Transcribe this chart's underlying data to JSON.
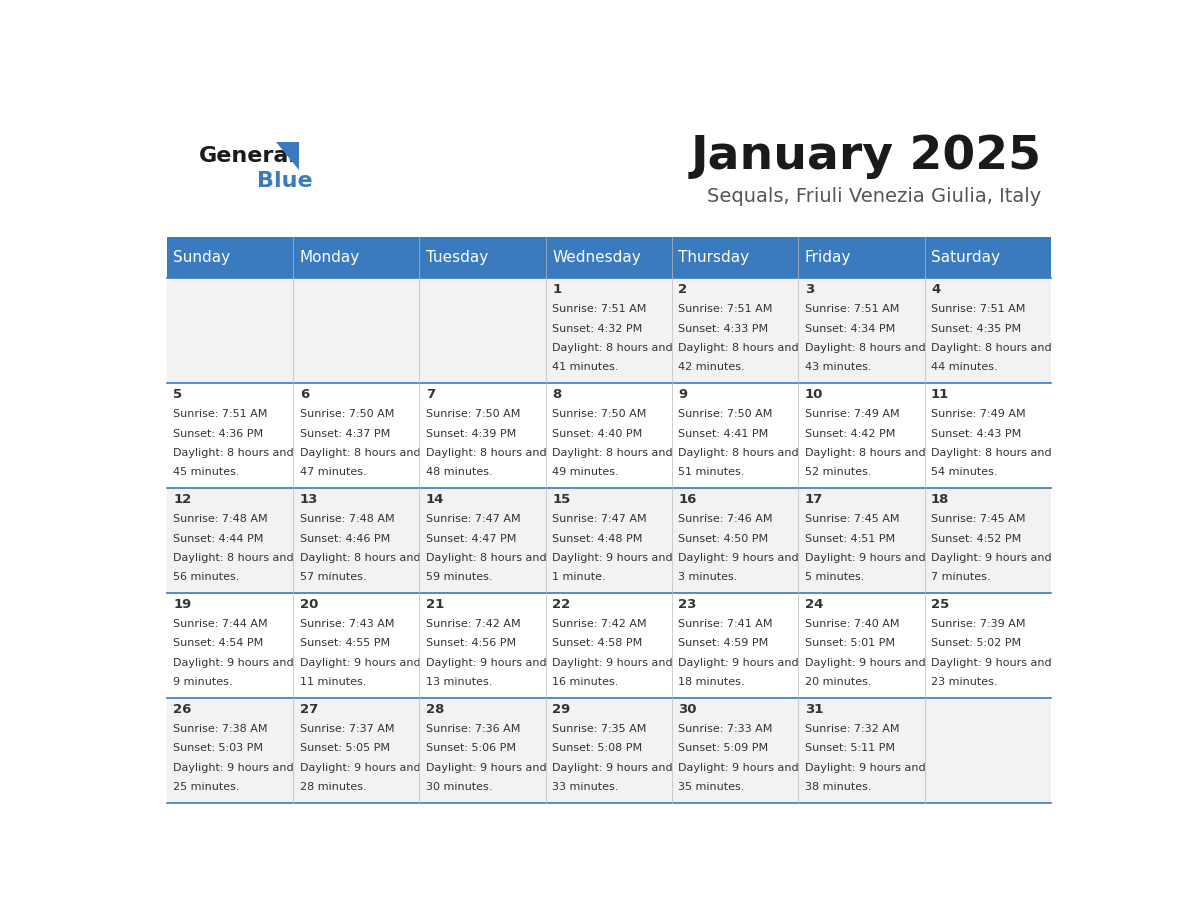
{
  "title": "January 2025",
  "subtitle": "Sequals, Friuli Venezia Giulia, Italy",
  "header_bg_color": "#3a7abf",
  "header_text_color": "#ffffff",
  "row_bg_colors": [
    "#f2f2f2",
    "#ffffff"
  ],
  "cell_text_color": "#333333",
  "day_num_color": "#333333",
  "border_color": "#3a7abf",
  "days_of_week": [
    "Sunday",
    "Monday",
    "Tuesday",
    "Wednesday",
    "Thursday",
    "Friday",
    "Saturday"
  ],
  "calendar": [
    [
      null,
      null,
      null,
      {
        "day": 1,
        "sunrise": "7:51 AM",
        "sunset": "4:32 PM",
        "daylight": "8 hours and 41 minutes."
      },
      {
        "day": 2,
        "sunrise": "7:51 AM",
        "sunset": "4:33 PM",
        "daylight": "8 hours and 42 minutes."
      },
      {
        "day": 3,
        "sunrise": "7:51 AM",
        "sunset": "4:34 PM",
        "daylight": "8 hours and 43 minutes."
      },
      {
        "day": 4,
        "sunrise": "7:51 AM",
        "sunset": "4:35 PM",
        "daylight": "8 hours and 44 minutes."
      }
    ],
    [
      {
        "day": 5,
        "sunrise": "7:51 AM",
        "sunset": "4:36 PM",
        "daylight": "8 hours and 45 minutes."
      },
      {
        "day": 6,
        "sunrise": "7:50 AM",
        "sunset": "4:37 PM",
        "daylight": "8 hours and 47 minutes."
      },
      {
        "day": 7,
        "sunrise": "7:50 AM",
        "sunset": "4:39 PM",
        "daylight": "8 hours and 48 minutes."
      },
      {
        "day": 8,
        "sunrise": "7:50 AM",
        "sunset": "4:40 PM",
        "daylight": "8 hours and 49 minutes."
      },
      {
        "day": 9,
        "sunrise": "7:50 AM",
        "sunset": "4:41 PM",
        "daylight": "8 hours and 51 minutes."
      },
      {
        "day": 10,
        "sunrise": "7:49 AM",
        "sunset": "4:42 PM",
        "daylight": "8 hours and 52 minutes."
      },
      {
        "day": 11,
        "sunrise": "7:49 AM",
        "sunset": "4:43 PM",
        "daylight": "8 hours and 54 minutes."
      }
    ],
    [
      {
        "day": 12,
        "sunrise": "7:48 AM",
        "sunset": "4:44 PM",
        "daylight": "8 hours and 56 minutes."
      },
      {
        "day": 13,
        "sunrise": "7:48 AM",
        "sunset": "4:46 PM",
        "daylight": "8 hours and 57 minutes."
      },
      {
        "day": 14,
        "sunrise": "7:47 AM",
        "sunset": "4:47 PM",
        "daylight": "8 hours and 59 minutes."
      },
      {
        "day": 15,
        "sunrise": "7:47 AM",
        "sunset": "4:48 PM",
        "daylight": "9 hours and 1 minute."
      },
      {
        "day": 16,
        "sunrise": "7:46 AM",
        "sunset": "4:50 PM",
        "daylight": "9 hours and 3 minutes."
      },
      {
        "day": 17,
        "sunrise": "7:45 AM",
        "sunset": "4:51 PM",
        "daylight": "9 hours and 5 minutes."
      },
      {
        "day": 18,
        "sunrise": "7:45 AM",
        "sunset": "4:52 PM",
        "daylight": "9 hours and 7 minutes."
      }
    ],
    [
      {
        "day": 19,
        "sunrise": "7:44 AM",
        "sunset": "4:54 PM",
        "daylight": "9 hours and 9 minutes."
      },
      {
        "day": 20,
        "sunrise": "7:43 AM",
        "sunset": "4:55 PM",
        "daylight": "9 hours and 11 minutes."
      },
      {
        "day": 21,
        "sunrise": "7:42 AM",
        "sunset": "4:56 PM",
        "daylight": "9 hours and 13 minutes."
      },
      {
        "day": 22,
        "sunrise": "7:42 AM",
        "sunset": "4:58 PM",
        "daylight": "9 hours and 16 minutes."
      },
      {
        "day": 23,
        "sunrise": "7:41 AM",
        "sunset": "4:59 PM",
        "daylight": "9 hours and 18 minutes."
      },
      {
        "day": 24,
        "sunrise": "7:40 AM",
        "sunset": "5:01 PM",
        "daylight": "9 hours and 20 minutes."
      },
      {
        "day": 25,
        "sunrise": "7:39 AM",
        "sunset": "5:02 PM",
        "daylight": "9 hours and 23 minutes."
      }
    ],
    [
      {
        "day": 26,
        "sunrise": "7:38 AM",
        "sunset": "5:03 PM",
        "daylight": "9 hours and 25 minutes."
      },
      {
        "day": 27,
        "sunrise": "7:37 AM",
        "sunset": "5:05 PM",
        "daylight": "9 hours and 28 minutes."
      },
      {
        "day": 28,
        "sunrise": "7:36 AM",
        "sunset": "5:06 PM",
        "daylight": "9 hours and 30 minutes."
      },
      {
        "day": 29,
        "sunrise": "7:35 AM",
        "sunset": "5:08 PM",
        "daylight": "9 hours and 33 minutes."
      },
      {
        "day": 30,
        "sunrise": "7:33 AM",
        "sunset": "5:09 PM",
        "daylight": "9 hours and 35 minutes."
      },
      {
        "day": 31,
        "sunrise": "7:32 AM",
        "sunset": "5:11 PM",
        "daylight": "9 hours and 38 minutes."
      },
      null
    ]
  ]
}
